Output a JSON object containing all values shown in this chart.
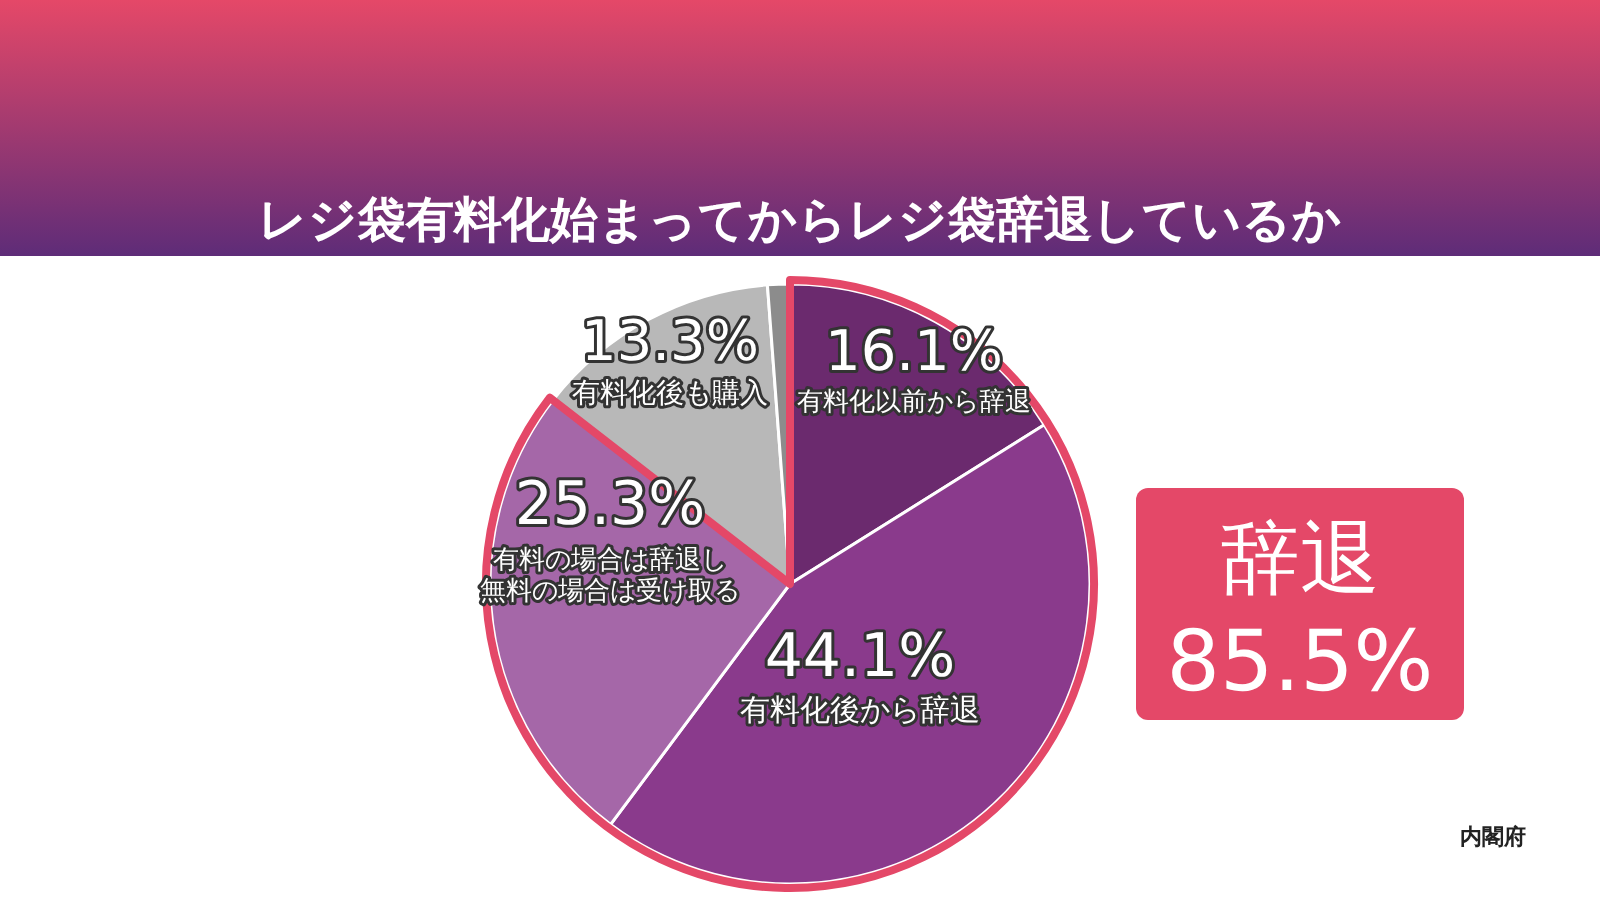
{
  "chart_data": {
    "type": "pie",
    "title": "レジ袋有料化始まってからレジ袋辞退しているか",
    "categories": [
      "有料化以前から辞退",
      "有料化後から辞退",
      "有料の場合は辞退し無料の場合は受け取る",
      "有料化後も購入",
      null
    ],
    "values": [
      16.1,
      44.1,
      25.3,
      13.3,
      1.2
    ],
    "value_labels": [
      "16.1%",
      "44.1%",
      "25.3%",
      "13.3%",
      null
    ],
    "colors": [
      "#6b2a6e",
      "#8a3a8c",
      "#a567a8",
      "#b8b8b8",
      "#8c8c8c"
    ],
    "annotations": [
      "辞退",
      "85.5%",
      "内閣府"
    ]
  }
}
